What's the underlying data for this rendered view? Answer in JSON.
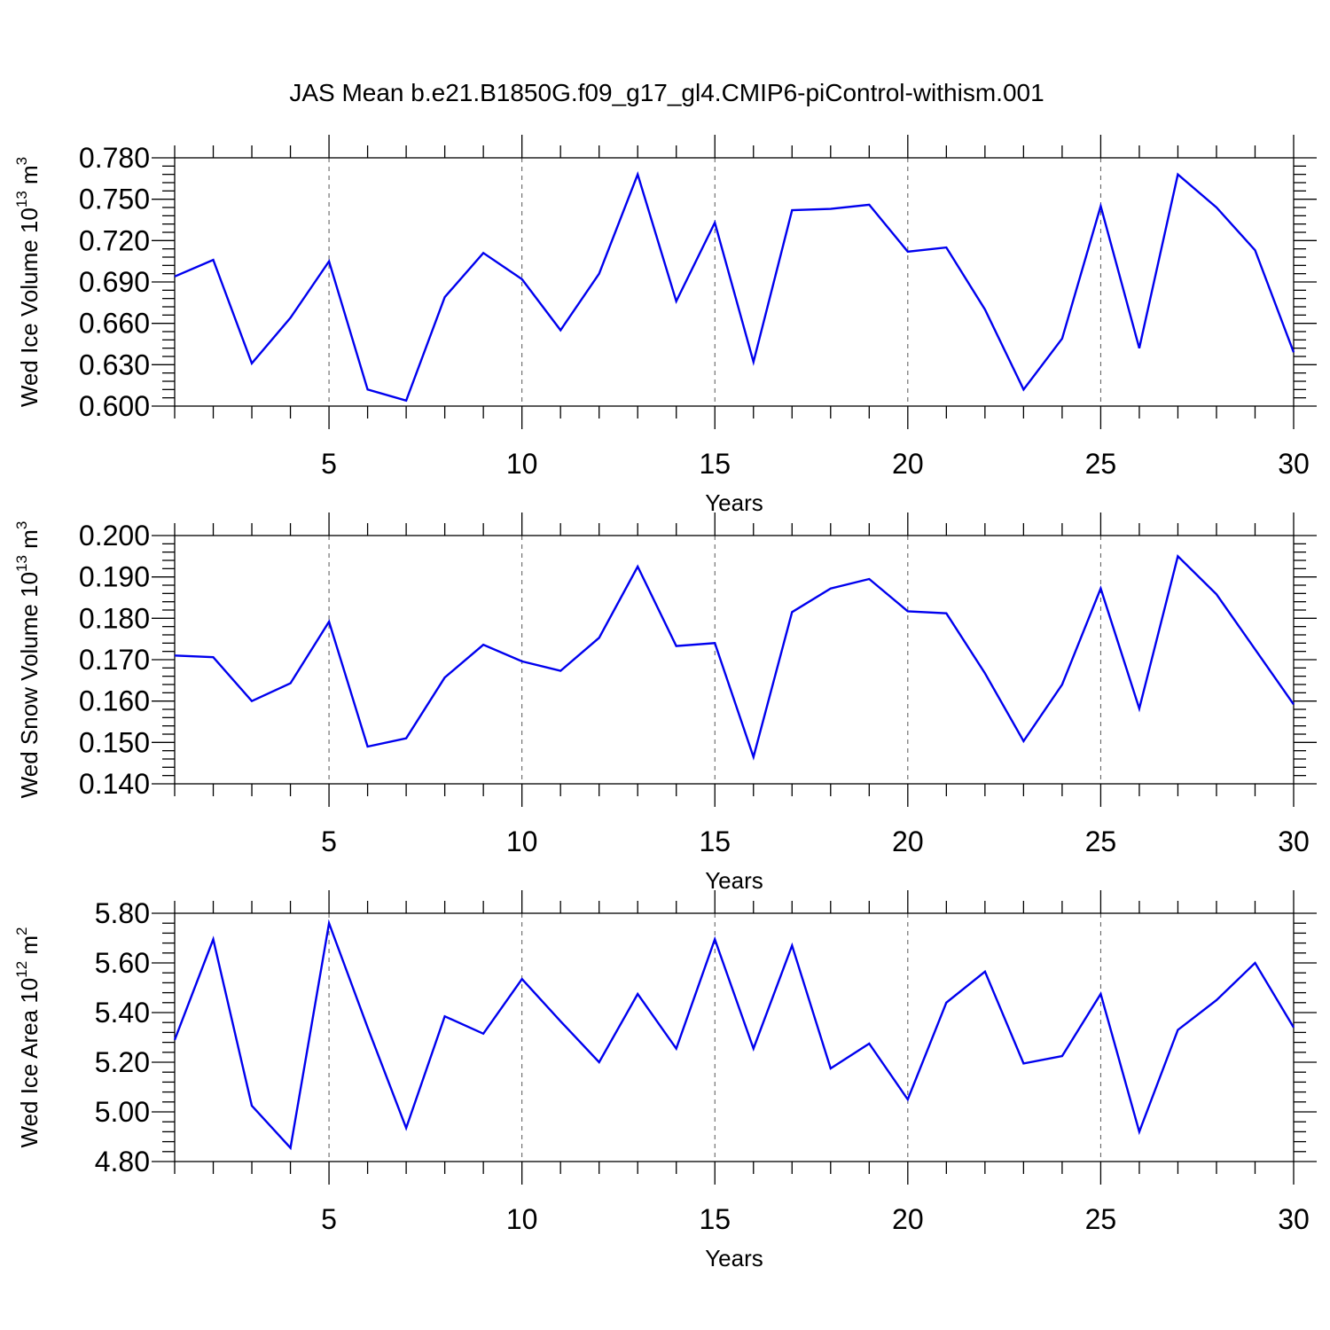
{
  "title": "JAS Mean b.e21.B1850G.f09_g17_gl4.CMIP6-piControl-withism.001",
  "colors": {
    "series": "#0000ee",
    "grid": "#555555",
    "axis": "#000000"
  },
  "chart_data": [
    {
      "type": "line",
      "title": "",
      "xlabel": "Years",
      "ylabel": {
        "prefix": "Wed Ice Volume 10",
        "exp": "13",
        "unit": " m",
        "unit_exp": "3"
      },
      "xlim": [
        1,
        30
      ],
      "ylim": [
        0.6,
        0.78
      ],
      "xticks": [
        5,
        10,
        15,
        20,
        25,
        30
      ],
      "xtick_labels": [
        "5",
        "10",
        "15",
        "20",
        "25",
        "30"
      ],
      "yticks": [
        0.6,
        0.63,
        0.66,
        0.69,
        0.72,
        0.75,
        0.78
      ],
      "ytick_labels": [
        "0.600",
        "0.630",
        "0.660",
        "0.690",
        "0.720",
        "0.750",
        "0.780"
      ],
      "y_minor_step": 0.006,
      "grid": "x dashed",
      "series": [
        {
          "x": [
            1,
            2,
            3,
            4,
            5,
            6,
            7,
            8,
            9,
            10,
            11,
            12,
            13,
            14,
            15,
            16,
            17,
            18,
            19,
            20,
            21,
            22,
            23,
            24,
            25,
            26,
            27,
            28,
            29,
            30
          ],
          "values": [
            0.694,
            0.706,
            0.631,
            0.664,
            0.705,
            0.612,
            0.604,
            0.679,
            0.711,
            0.692,
            0.655,
            0.696,
            0.768,
            0.676,
            0.733,
            0.632,
            0.742,
            0.743,
            0.746,
            0.712,
            0.715,
            0.67,
            0.612,
            0.649,
            0.745,
            0.642,
            0.768,
            0.744,
            0.713,
            0.639
          ]
        }
      ]
    },
    {
      "type": "line",
      "title": "",
      "xlabel": "Years",
      "ylabel": {
        "prefix": "Wed Snow Volume 10",
        "exp": "13",
        "unit": " m",
        "unit_exp": "3"
      },
      "xlim": [
        1,
        30
      ],
      "ylim": [
        0.14,
        0.2
      ],
      "xticks": [
        5,
        10,
        15,
        20,
        25,
        30
      ],
      "xtick_labels": [
        "5",
        "10",
        "15",
        "20",
        "25",
        "30"
      ],
      "yticks": [
        0.14,
        0.15,
        0.16,
        0.17,
        0.18,
        0.19,
        0.2
      ],
      "ytick_labels": [
        "0.140",
        "0.150",
        "0.160",
        "0.170",
        "0.180",
        "0.190",
        "0.200"
      ],
      "y_minor_step": 0.002,
      "grid": "x dashed",
      "series": [
        {
          "x": [
            1,
            2,
            3,
            4,
            5,
            6,
            7,
            8,
            9,
            10,
            11,
            12,
            13,
            14,
            15,
            16,
            17,
            18,
            19,
            20,
            21,
            22,
            23,
            24,
            25,
            26,
            27,
            28,
            29,
            30
          ],
          "values": [
            0.171,
            0.1706,
            0.16,
            0.1643,
            0.1792,
            0.149,
            0.151,
            0.1657,
            0.1736,
            0.1696,
            0.1673,
            0.1753,
            0.1925,
            0.1733,
            0.174,
            0.1465,
            0.1815,
            0.1872,
            0.1895,
            0.1817,
            0.1812,
            0.1667,
            0.1503,
            0.164,
            0.1872,
            0.1582,
            0.195,
            0.1858,
            0.1725,
            0.1592
          ]
        }
      ]
    },
    {
      "type": "line",
      "title": "",
      "xlabel": "Years",
      "ylabel": {
        "prefix": "Wed Ice Area 10",
        "exp": "12",
        "unit": " m",
        "unit_exp": "2"
      },
      "xlim": [
        1,
        30
      ],
      "ylim": [
        4.8,
        5.8
      ],
      "xticks": [
        5,
        10,
        15,
        20,
        25,
        30
      ],
      "xtick_labels": [
        "5",
        "10",
        "15",
        "20",
        "25",
        "30"
      ],
      "yticks": [
        4.8,
        5.0,
        5.2,
        5.4,
        5.6,
        5.8
      ],
      "ytick_labels": [
        "4.80",
        "5.00",
        "5.20",
        "5.40",
        "5.60",
        "5.80"
      ],
      "y_minor_step": 0.04,
      "grid": "x dashed",
      "series": [
        {
          "x": [
            1,
            2,
            3,
            4,
            5,
            6,
            7,
            8,
            9,
            10,
            11,
            12,
            13,
            14,
            15,
            16,
            17,
            18,
            19,
            20,
            21,
            22,
            23,
            24,
            25,
            26,
            27,
            28,
            29,
            30
          ],
          "values": [
            5.29,
            5.695,
            5.025,
            4.855,
            5.76,
            5.34,
            4.935,
            5.385,
            5.315,
            5.535,
            5.365,
            5.2,
            5.475,
            5.255,
            5.695,
            5.255,
            5.67,
            5.175,
            5.275,
            5.05,
            5.44,
            5.565,
            5.195,
            5.225,
            5.475,
            4.92,
            5.33,
            5.45,
            5.6,
            5.34
          ]
        }
      ]
    }
  ]
}
